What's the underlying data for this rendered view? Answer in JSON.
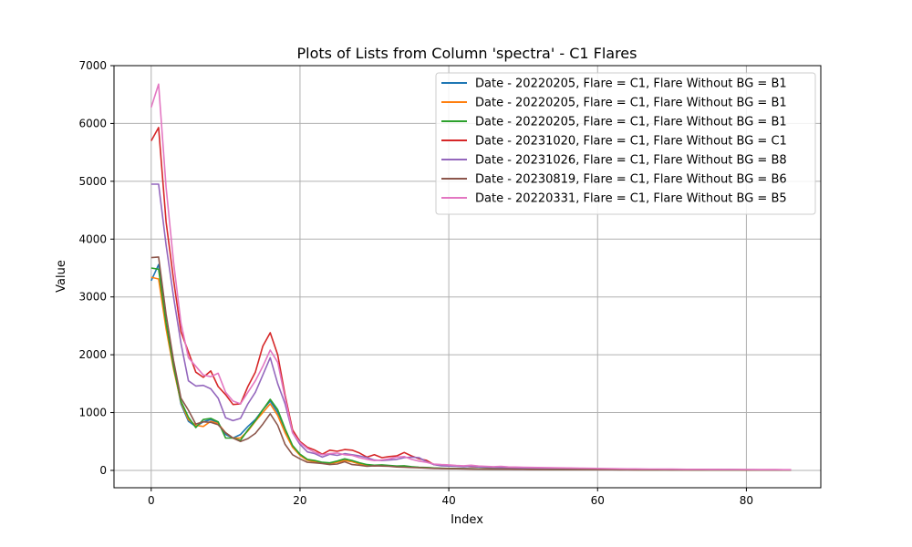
{
  "chart_data": {
    "type": "line",
    "title": "Plots of Lists from Column 'spectra' - C1 Flares",
    "xlabel": "Index",
    "ylabel": "Value",
    "xlim": [
      -5,
      90
    ],
    "ylim": [
      -300,
      7000
    ],
    "xticks": [
      0,
      20,
      40,
      60,
      80
    ],
    "yticks": [
      0,
      1000,
      2000,
      3000,
      4000,
      5000,
      6000,
      7000
    ],
    "grid": true,
    "legend_position": "upper right",
    "series": [
      {
        "name": "Date - 20220205, Flare = C1, Flare Without BG = B1",
        "color": "#1f77b4",
        "values": [
          3280,
          3560,
          2500,
          1800,
          1150,
          850,
          760,
          840,
          880,
          820,
          620,
          560,
          620,
          760,
          880,
          1050,
          1200,
          1000,
          700,
          420,
          270,
          180,
          160,
          130,
          120,
          150,
          190,
          160,
          120,
          90,
          80,
          90,
          80,
          70,
          70,
          60,
          50,
          45,
          40,
          35,
          35,
          30,
          30,
          28,
          26,
          25,
          24,
          22,
          22,
          20,
          20,
          18,
          18,
          17,
          16,
          16,
          15,
          15,
          14,
          14,
          13,
          13,
          12,
          12,
          12,
          11,
          11,
          11,
          10,
          10,
          10,
          10,
          9,
          9,
          9,
          9,
          8,
          8,
          8,
          8,
          8,
          7,
          7,
          7,
          7,
          7,
          7
        ]
      },
      {
        "name": "Date - 20220205, Flare = C1, Flare Without BG = B1",
        "color": "#ff7f0e",
        "values": [
          3340,
          3310,
          2450,
          1750,
          1180,
          880,
          780,
          760,
          850,
          810,
          650,
          560,
          560,
          680,
          850,
          1000,
          1150,
          950,
          650,
          400,
          260,
          175,
          150,
          130,
          120,
          140,
          170,
          150,
          110,
          90,
          80,
          85,
          80,
          70,
          65,
          55,
          50,
          45,
          40,
          35,
          33,
          30,
          28,
          27,
          26,
          25,
          24,
          23,
          22,
          21,
          20,
          19,
          18,
          17,
          16,
          16,
          15,
          15,
          14,
          14,
          13,
          13,
          12,
          12,
          12,
          11,
          11,
          11,
          10,
          10,
          10,
          10,
          9,
          9,
          9,
          9,
          8,
          8,
          8,
          8,
          8,
          7,
          7,
          7,
          7,
          7,
          7
        ]
      },
      {
        "name": "Date - 20220205, Flare = C1, Flare Without BG = B1",
        "color": "#2ca02c",
        "values": [
          3500,
          3480,
          2550,
          1800,
          1200,
          920,
          740,
          880,
          900,
          840,
          560,
          560,
          520,
          700,
          860,
          1050,
          1230,
          1050,
          720,
          430,
          280,
          190,
          170,
          140,
          130,
          160,
          200,
          170,
          130,
          100,
          90,
          95,
          85,
          75,
          80,
          65,
          55,
          50,
          42,
          38,
          35,
          32,
          30,
          28,
          27,
          26,
          25,
          24,
          23,
          22,
          21,
          20,
          19,
          18,
          17,
          16,
          16,
          15,
          15,
          14,
          14,
          13,
          13,
          12,
          12,
          12,
          11,
          11,
          11,
          10,
          10,
          10,
          10,
          9,
          9,
          9,
          9,
          8,
          8,
          8,
          8,
          8,
          7,
          7,
          7,
          7,
          7
        ]
      },
      {
        "name": "Date - 20231020, Flare = C1, Flare Without BG = C1",
        "color": "#d62728",
        "values": [
          5700,
          5930,
          4300,
          3300,
          2400,
          2050,
          1700,
          1610,
          1720,
          1450,
          1310,
          1140,
          1150,
          1450,
          1700,
          2150,
          2380,
          2000,
          1300,
          700,
          500,
          400,
          350,
          280,
          350,
          330,
          360,
          350,
          300,
          230,
          270,
          220,
          240,
          250,
          310,
          250,
          200,
          175,
          100,
          90,
          80,
          75,
          70,
          65,
          60,
          55,
          52,
          50,
          48,
          45,
          43,
          40,
          38,
          36,
          34,
          32,
          40,
          30,
          28,
          26,
          25,
          24,
          22,
          21,
          20,
          19,
          18,
          17,
          17,
          16,
          16,
          15,
          15,
          14,
          14,
          13,
          13,
          12,
          12,
          12,
          11,
          11,
          11,
          10,
          10,
          10,
          10
        ]
      },
      {
        "name": "Date - 20231026, Flare = C1, Flare Without BG = B8",
        "color": "#9467bd",
        "values": [
          4950,
          4950,
          3900,
          3000,
          2200,
          1550,
          1460,
          1470,
          1410,
          1250,
          910,
          860,
          900,
          1150,
          1350,
          1650,
          1950,
          1500,
          1150,
          650,
          450,
          320,
          290,
          230,
          280,
          260,
          290,
          270,
          250,
          220,
          180,
          170,
          180,
          190,
          220,
          230,
          220,
          150,
          100,
          80,
          75,
          70,
          65,
          70,
          60,
          55,
          52,
          50,
          48,
          45,
          43,
          40,
          38,
          36,
          34,
          32,
          30,
          28,
          27,
          26,
          25,
          24,
          23,
          22,
          21,
          20,
          19,
          18,
          18,
          17,
          17,
          16,
          16,
          15,
          15,
          14,
          14,
          13,
          13,
          12,
          12,
          12,
          11,
          11,
          11,
          10,
          10
        ]
      },
      {
        "name": "Date - 20230819, Flare = C1, Flare Without BG = B6",
        "color": "#8c564b",
        "values": [
          3680,
          3690,
          2700,
          1900,
          1250,
          1040,
          800,
          840,
          830,
          790,
          650,
          560,
          500,
          550,
          640,
          800,
          980,
          780,
          450,
          270,
          200,
          140,
          130,
          120,
          100,
          110,
          150,
          100,
          90,
          70,
          80,
          75,
          70,
          60,
          55,
          50,
          45,
          40,
          35,
          32,
          30,
          28,
          26,
          25,
          24,
          23,
          22,
          21,
          20,
          19,
          18,
          17,
          16,
          16,
          15,
          15,
          14,
          14,
          13,
          13,
          12,
          12,
          12,
          11,
          11,
          11,
          10,
          10,
          10,
          10,
          9,
          9,
          9,
          9,
          8,
          8,
          8,
          8,
          8,
          7,
          7,
          7,
          7,
          7,
          7,
          7,
          7
        ]
      },
      {
        "name": "Date - 20220331, Flare = C1, Flare Without BG = B5",
        "color": "#e377c2",
        "values": [
          6280,
          6680,
          4900,
          3600,
          2550,
          1950,
          1800,
          1650,
          1620,
          1680,
          1350,
          1200,
          1150,
          1350,
          1550,
          1800,
          2080,
          1870,
          1250,
          650,
          480,
          380,
          310,
          270,
          290,
          300,
          270,
          260,
          220,
          190,
          170,
          180,
          200,
          230,
          240,
          190,
          160,
          140,
          110,
          100,
          95,
          85,
          80,
          90,
          75,
          70,
          65,
          70,
          60,
          58,
          55,
          52,
          50,
          48,
          46,
          44,
          42,
          40,
          38,
          36,
          34,
          32,
          30,
          28,
          27,
          26,
          25,
          24,
          23,
          22,
          21,
          20,
          19,
          18,
          18,
          17,
          17,
          16,
          16,
          15,
          15,
          14,
          14,
          13,
          13,
          12,
          12
        ]
      }
    ]
  }
}
